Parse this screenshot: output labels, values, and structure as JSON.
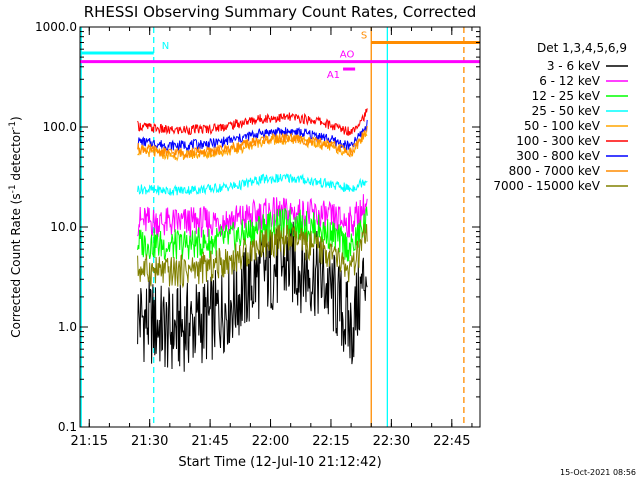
{
  "chart_data": {
    "type": "line",
    "title": "RHESSI Observing Summary Count Rates, Corrected",
    "xlabel": "Start Time (12-Jul-10 21:12:42)",
    "ylabel": "Corrected Count Rate (s⁻¹ detector⁻¹)",
    "ylabel_main": "Corrected Count Rate (s",
    "ylabel_exp1": "-1",
    "ylabel_mid": " detector",
    "ylabel_exp2": "-1",
    "ylabel_end": ")",
    "yscale": "log",
    "ylim": [
      0.1,
      1000
    ],
    "y_ticks": [
      {
        "value": 0.1,
        "label": "0.1"
      },
      {
        "value": 1,
        "label": "1.0"
      },
      {
        "value": 10,
        "label": "10.0"
      },
      {
        "value": 100,
        "label": "100.0"
      },
      {
        "value": 1000,
        "label": "1000.0"
      }
    ],
    "xlim": [
      "21:12:42",
      "22:52:00"
    ],
    "x_ticks": [
      "21:15",
      "21:30",
      "21:45",
      "22:00",
      "22:15",
      "22:30",
      "22:45"
    ],
    "legend_title": "Det 1,3,4,5,6,9",
    "legend_position": "right",
    "series": [
      {
        "name": "3 - 6 keV",
        "color": "#000000",
        "x": [
          "21:27",
          "21:35",
          "21:45",
          "21:52",
          "21:58",
          "22:05",
          "22:12",
          "22:16",
          "22:20",
          "22:24"
        ],
        "y": [
          1.3,
          0.9,
          1.2,
          2.0,
          3.5,
          4.3,
          3.2,
          2.0,
          0.9,
          4.0
        ]
      },
      {
        "name": "6 - 12 keV",
        "color": "#ff00ff",
        "x": [
          "21:27",
          "21:35",
          "21:45",
          "21:52",
          "21:58",
          "22:05",
          "22:12",
          "22:16",
          "22:20",
          "22:24"
        ],
        "y": [
          11.5,
          11.0,
          11.2,
          12.0,
          13.5,
          14.0,
          13.0,
          12.0,
          11.0,
          17.0
        ]
      },
      {
        "name": "12 - 25 keV",
        "color": "#00ff00",
        "x": [
          "21:27",
          "21:35",
          "21:45",
          "21:52",
          "21:58",
          "22:05",
          "22:12",
          "22:16",
          "22:20",
          "22:24"
        ],
        "y": [
          7.0,
          6.5,
          7.0,
          8.0,
          10.0,
          11.0,
          9.5,
          8.0,
          6.0,
          12.0
        ]
      },
      {
        "name": "25 - 50 keV",
        "color": "#00ffff",
        "x": [
          "21:27",
          "21:35",
          "21:45",
          "21:52",
          "21:58",
          "22:05",
          "22:12",
          "22:16",
          "22:20",
          "22:24"
        ],
        "y": [
          24,
          23,
          24,
          26,
          30,
          31,
          28,
          26,
          24,
          30
        ]
      },
      {
        "name": "50 - 100 keV",
        "color": "#ffa500",
        "x": [
          "21:27",
          "21:35",
          "21:45",
          "21:52",
          "21:58",
          "22:05",
          "22:12",
          "22:16",
          "22:20",
          "22:24"
        ],
        "y": [
          58,
          52,
          54,
          60,
          72,
          75,
          68,
          62,
          55,
          90
        ]
      },
      {
        "name": "100 - 300 keV",
        "color": "#ff0000",
        "x": [
          "21:27",
          "21:35",
          "21:45",
          "21:52",
          "21:58",
          "22:05",
          "22:12",
          "22:16",
          "22:20",
          "22:24"
        ],
        "y": [
          103,
          92,
          96,
          108,
          122,
          125,
          115,
          100,
          90,
          140
        ]
      },
      {
        "name": "300 - 800 keV",
        "color": "#0000ff",
        "x": [
          "21:27",
          "21:35",
          "21:45",
          "21:52",
          "21:58",
          "22:05",
          "22:12",
          "22:16",
          "22:20",
          "22:24"
        ],
        "y": [
          72,
          65,
          68,
          76,
          88,
          90,
          82,
          72,
          63,
          105
        ]
      },
      {
        "name": "800 - 7000 keV",
        "color": "#ff8c00",
        "x": [
          "21:27",
          "21:35",
          "21:45",
          "21:52",
          "21:58",
          "22:05",
          "22:12",
          "22:16",
          "22:20",
          "22:24"
        ],
        "y": [
          62,
          55,
          57,
          64,
          75,
          78,
          70,
          64,
          56,
          95
        ]
      },
      {
        "name": "7000 - 15000 keV",
        "color": "#808000",
        "x": [
          "21:27",
          "21:35",
          "21:45",
          "21:52",
          "21:58",
          "22:05",
          "22:12",
          "22:16",
          "22:20",
          "22:24"
        ],
        "y": [
          3.8,
          3.5,
          4.0,
          5.0,
          7.0,
          7.5,
          6.0,
          5.0,
          3.5,
          9.0
        ]
      }
    ],
    "annotations": [
      {
        "label": "N",
        "color": "#00ffff",
        "y": 550,
        "x_start": "21:13",
        "x_end": "21:31"
      },
      {
        "label": "S",
        "color": "#ff8c00",
        "y": 700,
        "x_start": "22:25",
        "x_end": "22:52"
      },
      {
        "label": "AO",
        "color": "#ff00ff",
        "y": 450,
        "x_start": "21:12:42",
        "x_end": "22:52"
      },
      {
        "label": "A1",
        "color": "#ff00ff",
        "y": 380,
        "x_start": "22:18",
        "x_end": "22:21"
      }
    ],
    "vlines": [
      {
        "x": "21:13",
        "color": "#00ffff",
        "style": "solid"
      },
      {
        "x": "21:31",
        "color": "#00ffff",
        "style": "dashed"
      },
      {
        "x": "22:25",
        "color": "#ff8c00",
        "style": "solid"
      },
      {
        "x": "22:29",
        "color": "#00ffff",
        "style": "solid"
      },
      {
        "x": "22:48",
        "color": "#ff8c00",
        "style": "dashed"
      }
    ],
    "timestamp": "15-Oct-2021 08:56"
  }
}
